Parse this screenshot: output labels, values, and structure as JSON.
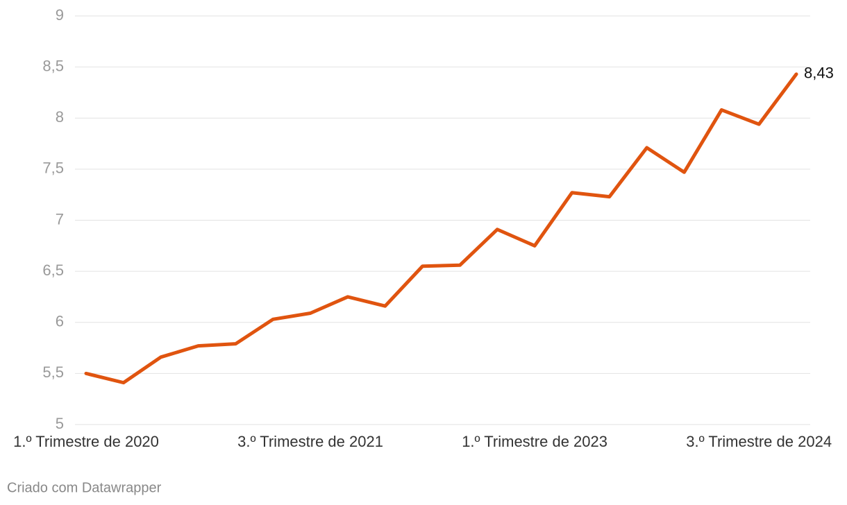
{
  "chart_data": {
    "type": "line",
    "categories": [
      "1.º Trimestre de 2020",
      null,
      null,
      null,
      null,
      null,
      "3.º Trimestre de 2021",
      null,
      null,
      null,
      null,
      null,
      "1.º Trimestre de 2023",
      null,
      null,
      null,
      null,
      null,
      "3.º Trimestre de 2024",
      null
    ],
    "series": [
      {
        "color": "#e0540f",
        "values": [
          5.5,
          5.41,
          5.66,
          5.77,
          5.79,
          6.03,
          6.09,
          6.25,
          6.16,
          6.55,
          6.56,
          6.91,
          6.75,
          7.27,
          7.23,
          7.71,
          7.47,
          8.08,
          7.94,
          8.43
        ],
        "value_labels": [
          null,
          null,
          null,
          null,
          null,
          null,
          null,
          null,
          null,
          null,
          null,
          null,
          null,
          null,
          null,
          null,
          null,
          null,
          null,
          "8,43"
        ]
      }
    ],
    "ylim": [
      5,
      9
    ],
    "yticks": [
      5,
      {
        "value": 5.5,
        "label": "5,5"
      },
      6,
      {
        "value": 6.5,
        "label": "6,5"
      },
      7,
      {
        "value": 7.5,
        "label": "7,5"
      },
      8,
      {
        "value": 8.5,
        "label": "8,5"
      },
      9
    ],
    "grid": true,
    "source": "Criado com Datawrapper"
  }
}
